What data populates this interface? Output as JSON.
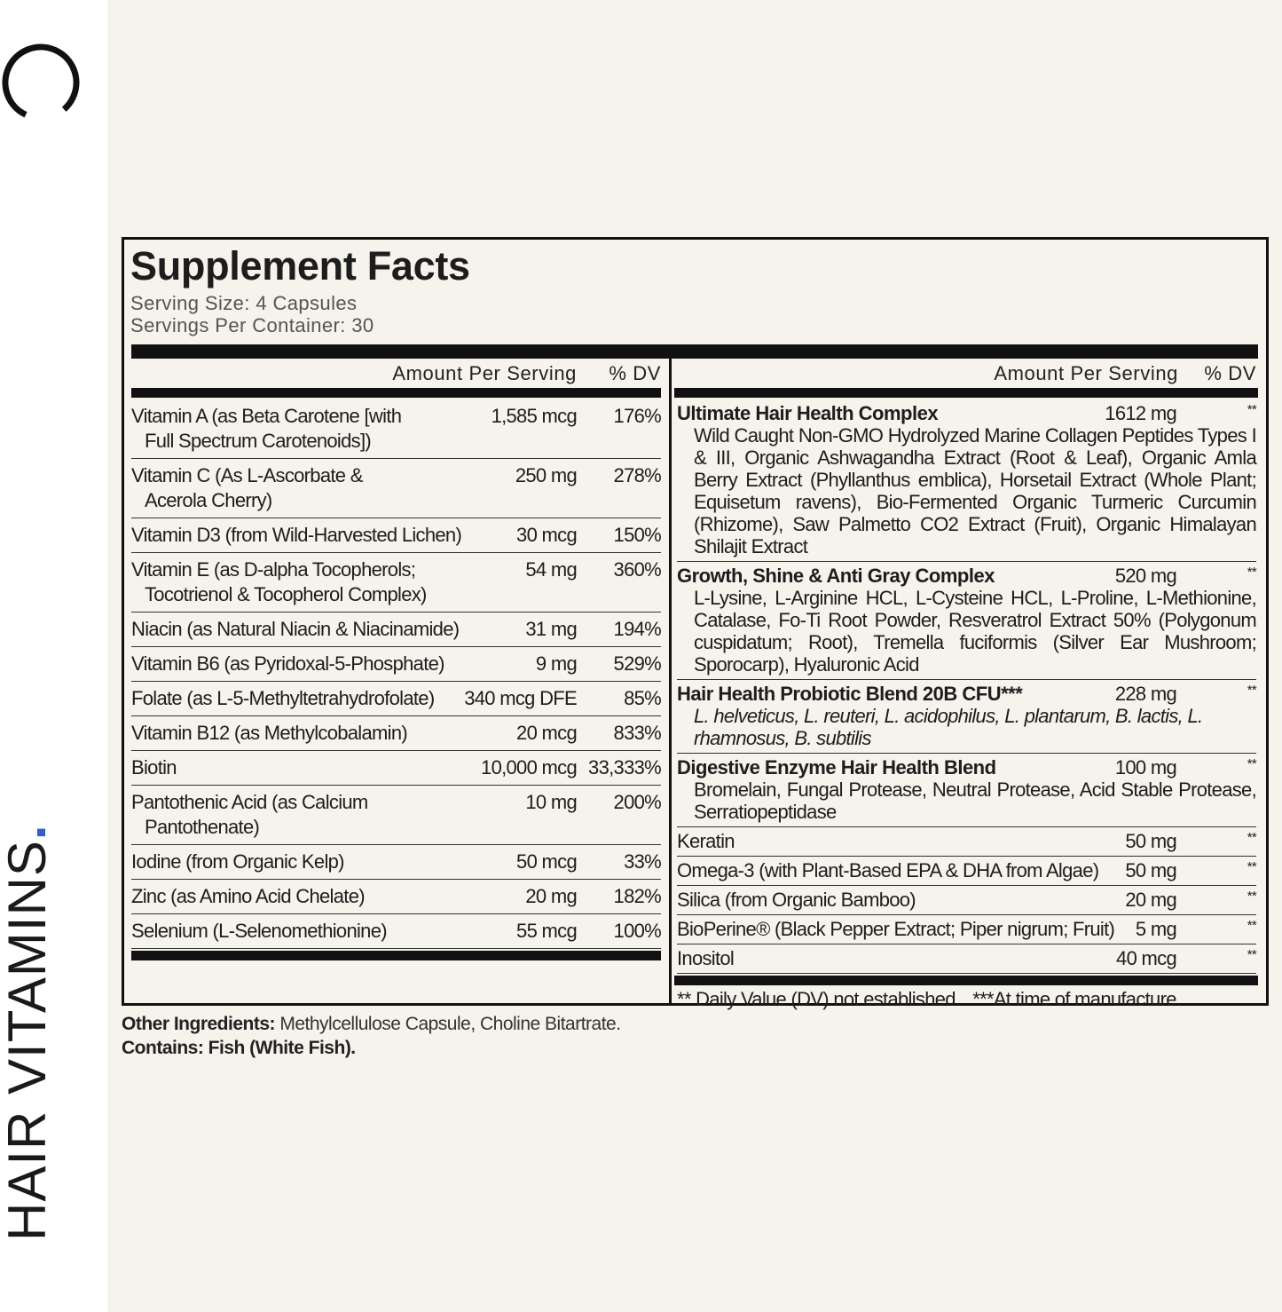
{
  "sidebar": {
    "brand": "HAIR VITAMINS",
    "brand_dot": "."
  },
  "facts": {
    "title": "Supplement Facts",
    "serving_size": "Serving Size: 4 Capsules",
    "servings_per_container": "Servings Per Container: 30",
    "left": {
      "header": {
        "amount": "Amount Per Serving",
        "dv": "% DV"
      },
      "rows": [
        {
          "name": [
            "Vitamin A (as Beta Carotene [with",
            "Full Spectrum Carotenoids])"
          ],
          "amount": "1,585 mcg",
          "dv": "176%"
        },
        {
          "name": [
            "Vitamin C (As L-Ascorbate &",
            "Acerola Cherry)"
          ],
          "amount": "250 mg",
          "dv": "278%"
        },
        {
          "name": [
            "Vitamin D3 (from Wild-Harvested Lichen)"
          ],
          "amount": "30 mcg",
          "dv": "150%"
        },
        {
          "name": [
            "Vitamin E (as D-alpha Tocopherols;",
            "Tocotrienol & Tocopherol Complex)"
          ],
          "amount": "54 mg",
          "dv": "360%"
        },
        {
          "name": [
            "Niacin (as Natural Niacin & Niacinamide)"
          ],
          "amount": "31 mg",
          "dv": "194%"
        },
        {
          "name": [
            "Vitamin B6 (as Pyridoxal-5-Phosphate)"
          ],
          "amount": "9 mg",
          "dv": "529%"
        },
        {
          "name": [
            "Folate (as L-5-Methyltetrahydrofolate)"
          ],
          "amount": "340 mcg DFE",
          "dv": "85%"
        },
        {
          "name": [
            "Vitamin B12 (as Methylcobalamin)"
          ],
          "amount": "20 mcg",
          "dv": "833%"
        },
        {
          "name": [
            "Biotin"
          ],
          "amount": "10,000 mcg",
          "dv": "33,333%"
        },
        {
          "name": [
            "Pantothenic Acid (as Calcium",
            "Pantothenate)"
          ],
          "amount": "10 mg",
          "dv": "200%"
        },
        {
          "name": [
            "Iodine (from Organic Kelp)"
          ],
          "amount": "50 mcg",
          "dv": "33%"
        },
        {
          "name": [
            "Zinc (as Amino Acid Chelate)"
          ],
          "amount": "20 mg",
          "dv": "182%"
        },
        {
          "name": [
            "Selenium (L-Selenomethionine)"
          ],
          "amount": "55 mcg",
          "dv": "100%"
        }
      ]
    },
    "right": {
      "header": {
        "amount": "Amount Per Serving",
        "dv": "% DV"
      },
      "rows": [
        {
          "name": "Ultimate Hair Health Complex",
          "amount": "1612 mg",
          "dv": "**",
          "description": "Wild Caught Non-GMO Hydrolyzed Marine Collagen Peptides Types I & III, Organic Ashwagandha Extract (Root & Leaf), Organic Amla Berry Extract (Phyllanthus emblica), Horsetail Extract (Whole Plant; Equisetum ravens), Bio-Fermented Organic Turmeric Curcumin (Rhizome), Saw Palmetto CO2 Extract (Fruit), Organic Himalayan Shilajit Extract"
        },
        {
          "name": "Growth, Shine & Anti Gray Complex",
          "amount": "520 mg",
          "dv": "**",
          "description": "L-Lysine, L-Arginine HCL, L-Cysteine HCL, L-Proline, L-Methionine, Catalase, Fo-Ti Root Powder, Resveratrol Extract 50% (Polygonum cuspidatum; Root), Tremella fuciformis (Silver Ear Mushroom; Sporocarp), Hyaluronic Acid"
        },
        {
          "name": "Hair Health Probiotic Blend 20B CFU***",
          "amount": "228 mg",
          "dv": "**",
          "description": "L. helveticus, L. reuteri, L. acidophilus, L. plantarum, B. lactis, L. rhamnosus, B. subtilis"
        },
        {
          "name": "Digestive Enzyme Hair Health Blend",
          "amount": "100 mg",
          "dv": "**",
          "description": "Bromelain, Fungal Protease, Neutral Protease, Acid Stable Protease, Serratiopeptidase"
        },
        {
          "name": "Keratin",
          "amount": "50 mg",
          "dv": "**"
        },
        {
          "name": "Omega-3 (with Plant-Based EPA & DHA from Algae)",
          "amount": "50 mg",
          "dv": "**"
        },
        {
          "name": "Silica (from Organic Bamboo)",
          "amount": "20 mg",
          "dv": "**"
        },
        {
          "name": "BioPerine® (Black Pepper Extract; Piper nigrum; Fruit)",
          "amount": "5 mg",
          "dv": "**"
        },
        {
          "name": "Inositol",
          "amount": "40 mcg",
          "dv": "**"
        }
      ],
      "footnotes": [
        "** Daily Value (DV) not established.",
        "***At time of manufacture."
      ]
    }
  },
  "other": {
    "label": "Other Ingredients:",
    "text": "Methylcellulose Capsule, Choline Bitartrate.",
    "contains": "Contains: Fish (White Fish)."
  }
}
